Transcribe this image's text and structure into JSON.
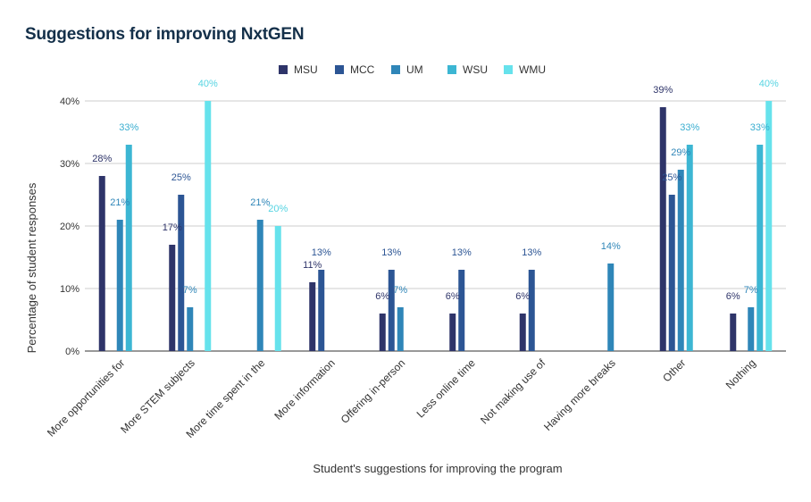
{
  "chart_data": {
    "type": "bar",
    "title": "Suggestions for improving NxtGEN",
    "xlabel": "Student's suggestions for improving the program",
    "ylabel": "Percentage of student responses",
    "ylim": [
      0,
      40
    ],
    "yticks": [
      "0%",
      "10%",
      "20%",
      "30%",
      "40%"
    ],
    "grid": true,
    "legend_position": "top",
    "categories": [
      "More opportunities for",
      "More STEM subjects",
      "More time spent in the",
      "More information",
      "Offering in-person",
      "Less online time",
      "Not making use of",
      "Having more breaks",
      "Other",
      "Nothing"
    ],
    "series": [
      {
        "name": "MSU",
        "color": "#2e3469",
        "label_color": "#2e3469",
        "values": [
          28,
          17,
          null,
          11,
          6,
          6,
          6,
          null,
          39,
          6
        ]
      },
      {
        "name": "MCC",
        "color": "#2c5594",
        "label_color": "#2c5594",
        "values": [
          null,
          25,
          null,
          13,
          13,
          13,
          13,
          null,
          25,
          null
        ]
      },
      {
        "name": "UM",
        "color": "#2f86b8",
        "label_color": "#2f86b8",
        "values": [
          21,
          7,
          21,
          null,
          7,
          null,
          null,
          14,
          29,
          7
        ]
      },
      {
        "name": "WSU",
        "color": "#3cb6d3",
        "label_color": "#3aaed0",
        "values": [
          33,
          null,
          null,
          null,
          null,
          null,
          null,
          null,
          33,
          33
        ]
      },
      {
        "name": "WMU",
        "color": "#66e2ec",
        "label_color": "#55d4e2",
        "values": [
          null,
          40,
          20,
          null,
          null,
          null,
          null,
          null,
          null,
          40
        ]
      }
    ]
  }
}
